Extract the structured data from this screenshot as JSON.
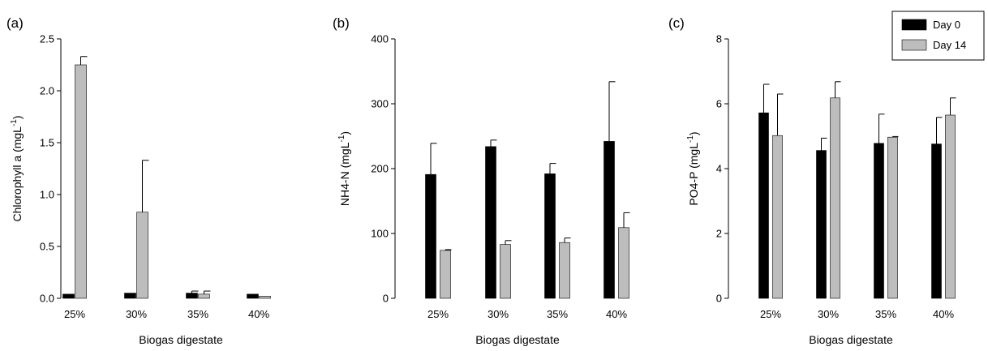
{
  "colors": {
    "day0": "#000000",
    "day14": "#bdbdbd",
    "axis": "#000000"
  },
  "legend": {
    "entries": [
      "Day 0",
      "Day 14"
    ]
  },
  "chart_data": [
    {
      "type": "bar",
      "panel_label": "(a)",
      "xlabel": "Biogas digestate",
      "ylabel_main": "Chlorophyll a (mgL",
      "ylabel_sup": "-1",
      "ylabel_close": ")",
      "ylim": [
        0,
        2.5
      ],
      "yticks": [
        0.0,
        0.5,
        1.0,
        1.5,
        2.0,
        2.5
      ],
      "ytick_labels": [
        "0.0",
        "0.5",
        "1.0",
        "1.5",
        "2.0",
        "2.5"
      ],
      "categories": [
        "25%",
        "30%",
        "35%",
        "40%"
      ],
      "series": [
        {
          "name": "Day 0",
          "values": [
            0.04,
            0.05,
            0.05,
            0.04
          ],
          "errors": [
            0.0,
            0.0,
            0.02,
            0.0
          ]
        },
        {
          "name": "Day 14",
          "values": [
            2.25,
            0.83,
            0.04,
            0.02
          ],
          "errors": [
            0.08,
            0.5,
            0.03,
            0.0
          ]
        }
      ]
    },
    {
      "type": "bar",
      "panel_label": "(b)",
      "xlabel": "Biogas digestate",
      "ylabel_main": "NH4-N (mgL",
      "ylabel_sup": "-1",
      "ylabel_close": ")",
      "ylim": [
        0,
        400
      ],
      "yticks": [
        0,
        100,
        200,
        300,
        400
      ],
      "ytick_labels": [
        "0",
        "100",
        "200",
        "300",
        "400"
      ],
      "categories": [
        "25%",
        "30%",
        "35%",
        "40%"
      ],
      "series": [
        {
          "name": "Day 0",
          "values": [
            191,
            234,
            192,
            242
          ],
          "errors": [
            48,
            10,
            16,
            92
          ]
        },
        {
          "name": "Day 14",
          "values": [
            74,
            83,
            86,
            109
          ],
          "errors": [
            1,
            6,
            7,
            23
          ]
        }
      ]
    },
    {
      "type": "bar",
      "panel_label": "(c)",
      "xlabel": "Biogas digestate",
      "ylabel_main": "PO4-P (mgL",
      "ylabel_sup": "-1",
      "ylabel_close": ")",
      "ylim": [
        0,
        8
      ],
      "yticks": [
        0,
        2,
        4,
        6,
        8
      ],
      "ytick_labels": [
        "0",
        "2",
        "4",
        "6",
        "8"
      ],
      "categories": [
        "25%",
        "30%",
        "35%",
        "40%"
      ],
      "legend_position": "top-right",
      "series": [
        {
          "name": "Day 0",
          "values": [
            5.72,
            4.56,
            4.78,
            4.76
          ],
          "errors": [
            0.88,
            0.38,
            0.9,
            0.82
          ]
        },
        {
          "name": "Day 14",
          "values": [
            5.02,
            6.18,
            4.97,
            5.65
          ],
          "errors": [
            1.28,
            0.5,
            0.02,
            0.53
          ]
        }
      ]
    }
  ]
}
